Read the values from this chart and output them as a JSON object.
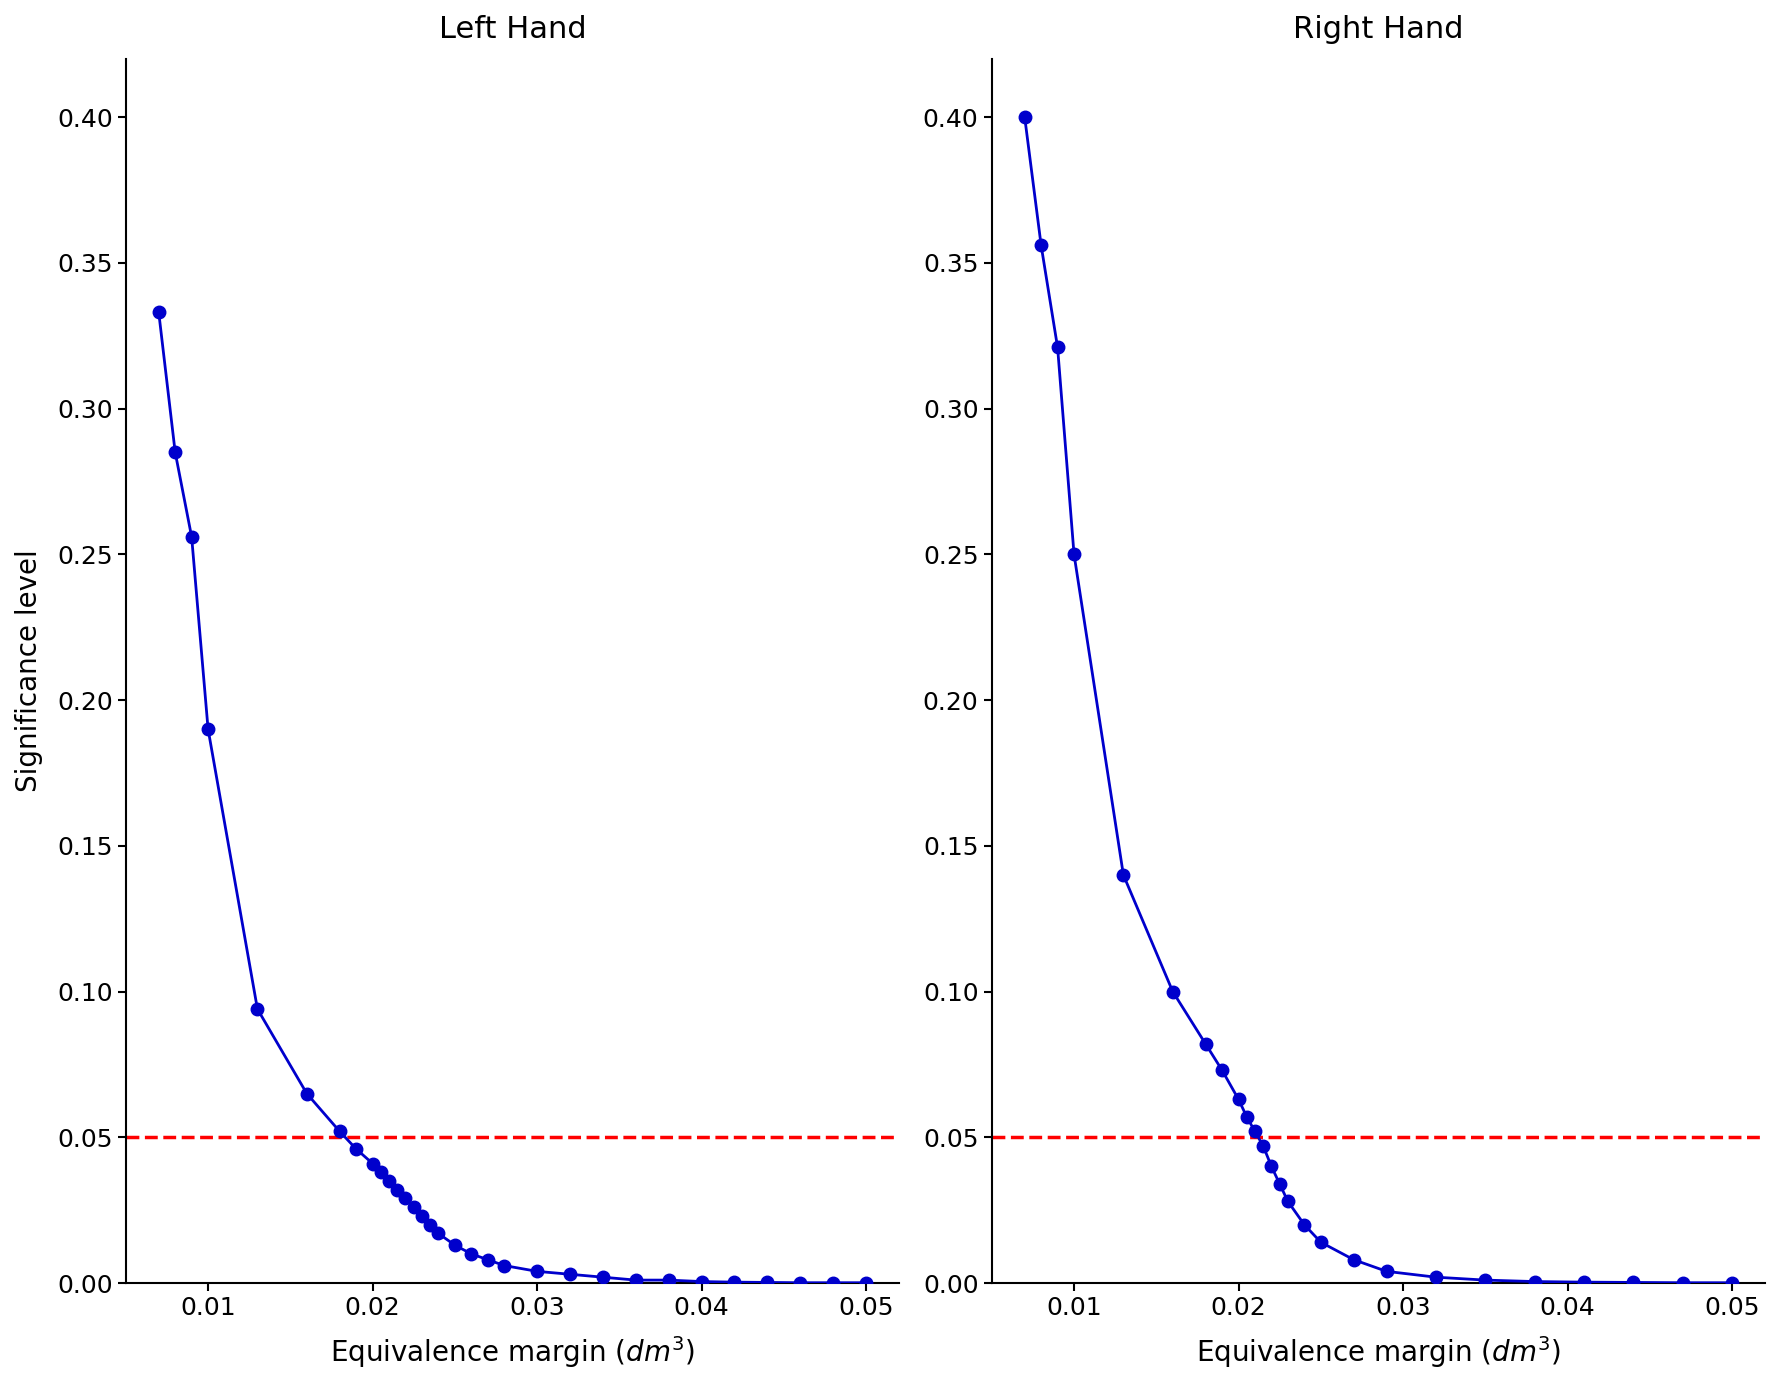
{
  "left_hand": {
    "title": "Left Hand",
    "x": [
      0.007,
      0.008,
      0.009,
      0.01,
      0.013,
      0.016,
      0.018,
      0.019,
      0.02,
      0.0205,
      0.021,
      0.0215,
      0.022,
      0.0225,
      0.023,
      0.0235,
      0.024,
      0.025,
      0.026,
      0.027,
      0.028,
      0.03,
      0.032,
      0.034,
      0.036,
      0.038,
      0.04,
      0.042,
      0.044,
      0.046,
      0.048,
      0.05
    ],
    "y": [
      0.333,
      0.285,
      0.256,
      0.19,
      0.094,
      0.065,
      0.052,
      0.046,
      0.041,
      0.038,
      0.035,
      0.032,
      0.029,
      0.026,
      0.023,
      0.02,
      0.017,
      0.013,
      0.01,
      0.008,
      0.006,
      0.004,
      0.003,
      0.002,
      0.001,
      0.001,
      0.0005,
      0.0003,
      0.0002,
      0.0001,
      0.0001,
      0.0001
    ]
  },
  "right_hand": {
    "title": "Right Hand",
    "x": [
      0.007,
      0.008,
      0.009,
      0.01,
      0.013,
      0.016,
      0.018,
      0.019,
      0.02,
      0.0205,
      0.021,
      0.0215,
      0.022,
      0.0225,
      0.023,
      0.024,
      0.025,
      0.027,
      0.029,
      0.032,
      0.035,
      0.038,
      0.041,
      0.044,
      0.047,
      0.05
    ],
    "y": [
      0.4,
      0.356,
      0.321,
      0.25,
      0.14,
      0.1,
      0.082,
      0.073,
      0.063,
      0.057,
      0.052,
      0.047,
      0.04,
      0.034,
      0.028,
      0.02,
      0.014,
      0.008,
      0.004,
      0.002,
      0.001,
      0.0005,
      0.0003,
      0.0002,
      0.0001,
      0.0001
    ]
  },
  "line_color": "#0000cc",
  "marker_color": "#0000cc",
  "ref_line_y": 0.05,
  "ref_line_color": "#ff0000",
  "xlabel": "Equivalence margin ($dm^3$)",
  "ylabel": "Significance level",
  "xlim": [
    0.005,
    0.052
  ],
  "ylim": [
    0.0,
    0.42
  ],
  "yticks": [
    0.0,
    0.05,
    0.1,
    0.15,
    0.2,
    0.25,
    0.3,
    0.35,
    0.4
  ],
  "xticks": [
    0.01,
    0.02,
    0.03,
    0.04,
    0.05
  ],
  "marker_size": 9,
  "line_width": 2.0,
  "background_color": "#ffffff"
}
